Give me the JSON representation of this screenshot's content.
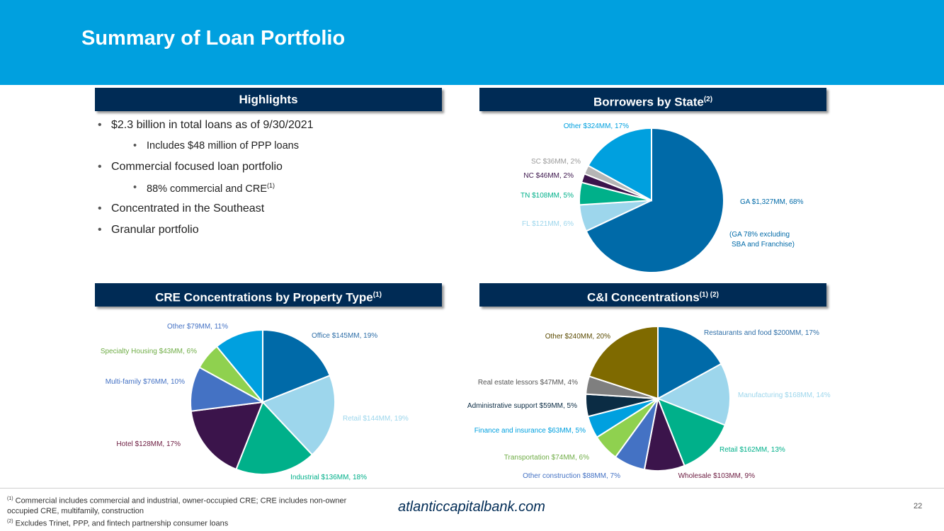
{
  "header": {
    "title": "Summary of Loan Portfolio"
  },
  "sections": {
    "highlights": {
      "title": "Highlights"
    },
    "state": {
      "title": "Borrowers by State",
      "sup": "(2)"
    },
    "cre": {
      "title": "CRE Concentrations by Property Type",
      "sup": "(1)"
    },
    "ci": {
      "title": "C&I Concentrations",
      "sup": "(1) (2)"
    }
  },
  "highlights": {
    "b1": "$2.3 billion in total loans as of 9/30/2021",
    "b1a": "Includes $48 million of PPP loans",
    "b2": "Commercial focused loan portfolio",
    "b2a": "88% commercial and CRE",
    "b2a_sup": "(1)",
    "b3": "Concentrated in the Southeast",
    "b4": "Granular portfolio"
  },
  "chart_data": [
    {
      "type": "pie",
      "title": "Borrowers by State",
      "slices": [
        {
          "label": "GA $1,327MM, 68%",
          "value": 68,
          "color": "#006aa8"
        },
        {
          "label": "FL $121MM, 6%",
          "value": 6,
          "color": "#9dd6ec"
        },
        {
          "label": "TN $108MM, 5%",
          "value": 5,
          "color": "#00b08a"
        },
        {
          "label": "NC $46MM, 2%",
          "value": 2,
          "color": "#3b144b"
        },
        {
          "label": "SC $36MM, 2%",
          "value": 2,
          "color": "#b5b5b5"
        },
        {
          "label": "Other $324MM, 17%",
          "value": 17,
          "color": "#00a0df"
        }
      ],
      "annotation": [
        "(GA 78% excluding",
        "SBA and Franchise)"
      ]
    },
    {
      "type": "pie",
      "title": "CRE Concentrations by Property Type",
      "slices": [
        {
          "label": "Office $145MM, 19%",
          "value": 19,
          "color": "#006aa8"
        },
        {
          "label": "Retail $144MM, 19%",
          "value": 19,
          "color": "#9dd6ec"
        },
        {
          "label": "Industrial $136MM, 18%",
          "value": 18,
          "color": "#00b08a"
        },
        {
          "label": "Hotel $128MM, 17%",
          "value": 17,
          "color": "#3b144b"
        },
        {
          "label": "Multi-family $76MM, 10%",
          "value": 10,
          "color": "#4472c4"
        },
        {
          "label": "Specialty Housing $43MM, 6%",
          "value": 6,
          "color": "#8fd14f"
        },
        {
          "label": "Other $79MM, 11%",
          "value": 11,
          "color": "#00a0df"
        }
      ]
    },
    {
      "type": "pie",
      "title": "C&I Concentrations",
      "slices": [
        {
          "label": "Restaurants and food $200MM, 17%",
          "value": 17,
          "color": "#006aa8"
        },
        {
          "label": "Manufacturing $168MM, 14%",
          "value": 14,
          "color": "#9dd6ec"
        },
        {
          "label": "Retail $162MM, 13%",
          "value": 13,
          "color": "#00b08a"
        },
        {
          "label": "Wholesale $103MM, 9%",
          "value": 9,
          "color": "#3b144b"
        },
        {
          "label": "Other construction $88MM, 7%",
          "value": 7,
          "color": "#4472c4"
        },
        {
          "label": "Transportation $74MM, 6%",
          "value": 6,
          "color": "#8fd14f"
        },
        {
          "label": "Finance and insurance $63MM, 5%",
          "value": 5,
          "color": "#00a0df"
        },
        {
          "label": "Administrative support $59MM, 5%",
          "value": 5,
          "color": "#0b2c44"
        },
        {
          "label": "Real estate lessors $47MM, 4%",
          "value": 4,
          "color": "#7f7f7f"
        },
        {
          "label": "Other $240MM, 20%",
          "value": 20,
          "color": "#7f6a00"
        }
      ]
    }
  ],
  "footer": {
    "fn1_sup": "(1)",
    "fn1": "Commercial includes commercial and industrial, owner-occupied CRE; CRE includes non-owner occupied CRE, multifamily, construction",
    "fn2_sup": "(2)",
    "fn2": "Excludes Trinet, PPP, and fintech partnership consumer loans",
    "site": "atlanticcapitalbank.com",
    "page": "22"
  }
}
